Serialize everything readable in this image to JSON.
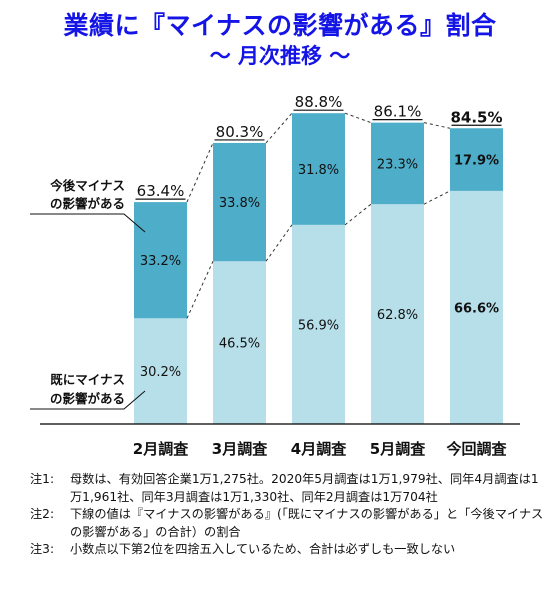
{
  "title": "業績に『マイナスの影響がある』割合",
  "subtitle": "～ 月次推移 ～",
  "colors": {
    "existing": "#b7dfea",
    "future": "#4eadc8",
    "axis": "#000000",
    "title": "#1414e6"
  },
  "chart_data": {
    "type": "bar",
    "stacked": true,
    "categories": [
      "2月調査",
      "3月調査",
      "4月調査",
      "5月調査",
      "今回調査"
    ],
    "series": [
      {
        "name": "既にマイナスの影響がある",
        "values": [
          30.2,
          46.5,
          56.9,
          62.8,
          66.6
        ]
      },
      {
        "name": "今後マイナスの影響がある",
        "values": [
          33.2,
          33.8,
          31.8,
          23.3,
          17.9
        ]
      }
    ],
    "totals": [
      63.4,
      80.3,
      88.8,
      86.1,
      84.5
    ],
    "value_labels_existing": [
      "30.2%",
      "46.5%",
      "56.9%",
      "62.8%",
      "66.6%"
    ],
    "value_labels_future": [
      "33.2%",
      "33.8%",
      "31.8%",
      "23.3%",
      "17.9%"
    ],
    "total_labels": [
      "63.4%",
      "80.3%",
      "88.8%",
      "86.1%",
      "84.5%"
    ],
    "bold_category": "今回調査",
    "series_callouts": {
      "future": [
        "今後マイナス",
        "の影響がある"
      ],
      "existing": [
        "既にマイナス",
        "の影響がある"
      ]
    },
    "ylim": [
      0,
      100
    ],
    "grid": false,
    "legend": "callouts-left"
  },
  "notes": [
    {
      "label": "注1:",
      "text": "母数は、有効回答企業1万1,275社。2020年5月調査は1万1,979社、同年4月調査は1万1,961社、同年3月調査は1万1,330社、同年2月調査は1万704社"
    },
    {
      "label": "注2:",
      "text": "下線の値は『マイナスの影響がある』(「既にマイナスの影響がある」と「今後マイナスの影響がある」の合計）の割合"
    },
    {
      "label": "注3:",
      "text": "小数点以下第2位を四捨五入しているため、合計は必ずしも一致しない"
    }
  ]
}
